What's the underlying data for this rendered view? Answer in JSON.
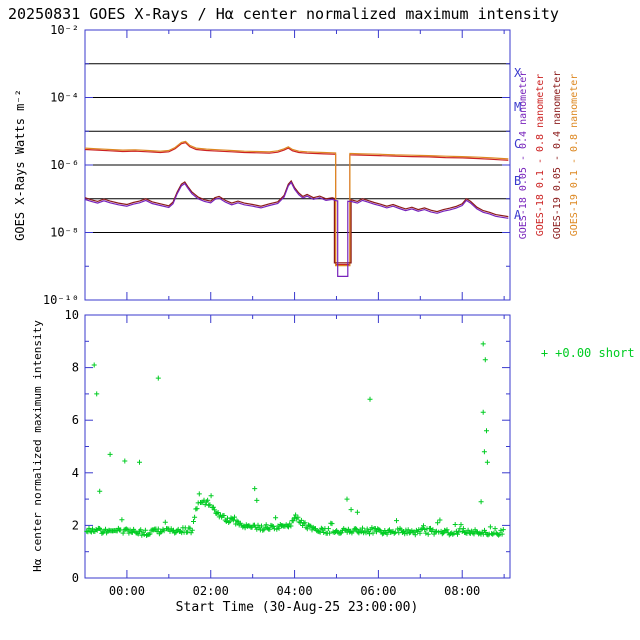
{
  "title": "20250831 GOES X-Rays / Hα center normalized maximum intensity",
  "colors": {
    "frame": "#3a3acd",
    "black": "#000000",
    "background": "#ffffff"
  },
  "chart_data": [
    {
      "type": "line",
      "ylabel": "GOES X-Rays Watts m⁻²",
      "y_scale": "log",
      "y_exp_range": [
        -10,
        -2
      ],
      "ytick_exps": [
        -2,
        -4,
        -6,
        -8,
        -10
      ],
      "ytick_labels": [
        "10⁻²",
        "10⁻⁴",
        "10⁻⁶",
        "10⁻⁸",
        "10⁻¹⁰"
      ],
      "hline_exps": [
        -3,
        -4,
        -5,
        -6,
        -7,
        -8
      ],
      "flare_classes": [
        {
          "label": "X",
          "exp": -3.3
        },
        {
          "label": "M",
          "exp": -4.3
        },
        {
          "label": "C",
          "exp": -5.4
        },
        {
          "label": "B",
          "exp": -6.5
        },
        {
          "label": "A",
          "exp": -7.5
        }
      ],
      "x_range_hours": [
        0,
        10.14
      ],
      "draw_order": [
        1,
        3,
        2,
        0
      ],
      "series": [
        {
          "id": "goes18-short",
          "name": "GOES-18 0.05 - 0.4 nanometer",
          "color": "#7722bb",
          "dropout": {
            "t0": 6.03,
            "t1": 6.27,
            "floor_exp": -9.3
          },
          "points": [
            [
              0.0,
              -7.02
            ],
            [
              0.15,
              -7.08
            ],
            [
              0.3,
              -7.13
            ],
            [
              0.45,
              -7.06
            ],
            [
              0.6,
              -7.12
            ],
            [
              0.8,
              -7.18
            ],
            [
              1.0,
              -7.22
            ],
            [
              1.15,
              -7.16
            ],
            [
              1.3,
              -7.12
            ],
            [
              1.45,
              -7.05
            ],
            [
              1.6,
              -7.14
            ],
            [
              1.8,
              -7.2
            ],
            [
              2.0,
              -7.26
            ],
            [
              2.1,
              -7.15
            ],
            [
              2.2,
              -6.85
            ],
            [
              2.3,
              -6.62
            ],
            [
              2.38,
              -6.55
            ],
            [
              2.45,
              -6.68
            ],
            [
              2.55,
              -6.85
            ],
            [
              2.7,
              -7.0
            ],
            [
              2.85,
              -7.08
            ],
            [
              3.0,
              -7.12
            ],
            [
              3.1,
              -7.02
            ],
            [
              3.2,
              -6.98
            ],
            [
              3.35,
              -7.1
            ],
            [
              3.5,
              -7.18
            ],
            [
              3.65,
              -7.12
            ],
            [
              3.8,
              -7.18
            ],
            [
              4.0,
              -7.22
            ],
            [
              4.2,
              -7.27
            ],
            [
              4.4,
              -7.2
            ],
            [
              4.6,
              -7.14
            ],
            [
              4.75,
              -6.95
            ],
            [
              4.85,
              -6.62
            ],
            [
              4.92,
              -6.52
            ],
            [
              5.0,
              -6.72
            ],
            [
              5.1,
              -6.88
            ],
            [
              5.2,
              -6.98
            ],
            [
              5.3,
              -6.92
            ],
            [
              5.45,
              -7.02
            ],
            [
              5.6,
              -6.97
            ],
            [
              5.75,
              -7.05
            ],
            [
              5.9,
              -7.02
            ],
            [
              6.0,
              -7.06
            ],
            [
              6.35,
              -7.08
            ],
            [
              6.5,
              -7.13
            ],
            [
              6.62,
              -7.05
            ],
            [
              6.75,
              -7.1
            ],
            [
              6.9,
              -7.16
            ],
            [
              7.05,
              -7.21
            ],
            [
              7.2,
              -7.27
            ],
            [
              7.35,
              -7.22
            ],
            [
              7.5,
              -7.29
            ],
            [
              7.65,
              -7.35
            ],
            [
              7.8,
              -7.3
            ],
            [
              7.95,
              -7.37
            ],
            [
              8.1,
              -7.32
            ],
            [
              8.25,
              -7.39
            ],
            [
              8.4,
              -7.43
            ],
            [
              8.55,
              -7.37
            ],
            [
              8.7,
              -7.33
            ],
            [
              8.85,
              -7.28
            ],
            [
              9.0,
              -7.2
            ],
            [
              9.1,
              -7.05
            ],
            [
              9.2,
              -7.13
            ],
            [
              9.35,
              -7.3
            ],
            [
              9.5,
              -7.4
            ],
            [
              9.65,
              -7.45
            ],
            [
              9.8,
              -7.52
            ],
            [
              10.1,
              -7.58
            ]
          ]
        },
        {
          "id": "goes18-long",
          "name": "GOES-18 0.1 - 0.8 nanometer",
          "color": "#cc2222",
          "ref": 3,
          "offset_exp": -0.04,
          "dropout": {
            "t0": 5.98,
            "t1": 6.32,
            "floor_exp": -8.95
          }
        },
        {
          "id": "goes19-short",
          "name": "GOES-19 0.05 - 0.4 nanometer",
          "color": "#8b1a1a",
          "ref": 0,
          "offset_exp": 0.05,
          "dropout": {
            "t0": 5.95,
            "t1": 6.35,
            "floor_exp": -8.9
          }
        },
        {
          "id": "goes19-long",
          "name": "GOES-19 0.1 - 0.8 nanometer",
          "color": "#dd8822",
          "dropout": {
            "t0": 5.98,
            "t1": 6.32,
            "floor_exp": -8.98
          },
          "points": [
            [
              0.0,
              -5.5
            ],
            [
              0.3,
              -5.52
            ],
            [
              0.6,
              -5.54
            ],
            [
              0.9,
              -5.56
            ],
            [
              1.2,
              -5.55
            ],
            [
              1.5,
              -5.57
            ],
            [
              1.8,
              -5.59
            ],
            [
              2.0,
              -5.57
            ],
            [
              2.15,
              -5.48
            ],
            [
              2.3,
              -5.33
            ],
            [
              2.4,
              -5.3
            ],
            [
              2.5,
              -5.42
            ],
            [
              2.65,
              -5.5
            ],
            [
              2.9,
              -5.53
            ],
            [
              3.2,
              -5.55
            ],
            [
              3.5,
              -5.57
            ],
            [
              3.8,
              -5.59
            ],
            [
              4.1,
              -5.6
            ],
            [
              4.4,
              -5.61
            ],
            [
              4.6,
              -5.58
            ],
            [
              4.75,
              -5.52
            ],
            [
              4.85,
              -5.46
            ],
            [
              4.95,
              -5.54
            ],
            [
              5.1,
              -5.59
            ],
            [
              5.3,
              -5.61
            ],
            [
              5.5,
              -5.62
            ],
            [
              5.7,
              -5.63
            ],
            [
              5.9,
              -5.64
            ],
            [
              6.35,
              -5.66
            ],
            [
              6.6,
              -5.67
            ],
            [
              7.0,
              -5.68
            ],
            [
              7.4,
              -5.7
            ],
            [
              7.8,
              -5.71
            ],
            [
              8.2,
              -5.72
            ],
            [
              8.6,
              -5.74
            ],
            [
              9.0,
              -5.75
            ],
            [
              9.4,
              -5.77
            ],
            [
              9.7,
              -5.79
            ],
            [
              10.1,
              -5.82
            ]
          ]
        }
      ]
    },
    {
      "type": "scatter",
      "ylabel": "Hα center normalized maximum intensity",
      "xlabel": "Start Time (30-Aug-25 23:00:00)",
      "ylim": [
        0,
        10
      ],
      "yticks": [
        0,
        2,
        4,
        6,
        8,
        10
      ],
      "x_range_hours": [
        0,
        10.14
      ],
      "xticks": [
        {
          "t": 1,
          "label": "00:00"
        },
        {
          "t": 3,
          "label": "02:00"
        },
        {
          "t": 5,
          "label": "04:00"
        },
        {
          "t": 7,
          "label": "06:00"
        },
        {
          "t": 9,
          "label": "08:00"
        }
      ],
      "marker": "plus",
      "color": "#00cc22",
      "legend_label": "+0.00 short",
      "band": {
        "t0": 0.04,
        "t1": 10.0,
        "step": 0.028,
        "jitter": 0.11,
        "seed": 9,
        "spike_prob": 0.06,
        "spike_max": 0.45,
        "mean": [
          [
            0.0,
            1.85
          ],
          [
            0.5,
            1.78
          ],
          [
            1.0,
            1.8
          ],
          [
            1.4,
            1.72
          ],
          [
            1.8,
            1.78
          ],
          [
            2.2,
            1.82
          ],
          [
            2.55,
            1.8
          ],
          [
            2.65,
            2.6
          ],
          [
            2.75,
            2.95
          ],
          [
            2.9,
            2.8
          ],
          [
            3.1,
            2.55
          ],
          [
            3.3,
            2.3
          ],
          [
            3.6,
            2.1
          ],
          [
            3.9,
            1.95
          ],
          [
            4.2,
            1.92
          ],
          [
            4.6,
            1.9
          ],
          [
            4.9,
            2.05
          ],
          [
            5.05,
            2.35
          ],
          [
            5.2,
            2.05
          ],
          [
            5.4,
            1.85
          ],
          [
            5.7,
            1.78
          ],
          [
            6.0,
            1.8
          ],
          [
            6.3,
            1.78
          ],
          [
            6.7,
            1.8
          ],
          [
            7.1,
            1.75
          ],
          [
            7.5,
            1.78
          ],
          [
            7.9,
            1.75
          ],
          [
            8.3,
            1.78
          ],
          [
            8.7,
            1.74
          ],
          [
            9.1,
            1.78
          ],
          [
            9.5,
            1.74
          ],
          [
            10.0,
            1.74
          ]
        ]
      },
      "outliers": [
        [
          0.22,
          8.1
        ],
        [
          0.28,
          7.0
        ],
        [
          0.35,
          3.3
        ],
        [
          0.6,
          4.7
        ],
        [
          0.95,
          4.45
        ],
        [
          1.3,
          4.4
        ],
        [
          1.75,
          7.6
        ],
        [
          4.05,
          3.4
        ],
        [
          4.1,
          2.95
        ],
        [
          6.25,
          3.0
        ],
        [
          6.35,
          2.6
        ],
        [
          6.5,
          2.5
        ],
        [
          6.8,
          6.8
        ],
        [
          9.45,
          2.9
        ],
        [
          9.5,
          8.9
        ],
        [
          9.5,
          6.3
        ],
        [
          9.53,
          4.8
        ],
        [
          9.55,
          8.3
        ],
        [
          9.58,
          5.6
        ],
        [
          9.6,
          4.4
        ]
      ]
    }
  ]
}
